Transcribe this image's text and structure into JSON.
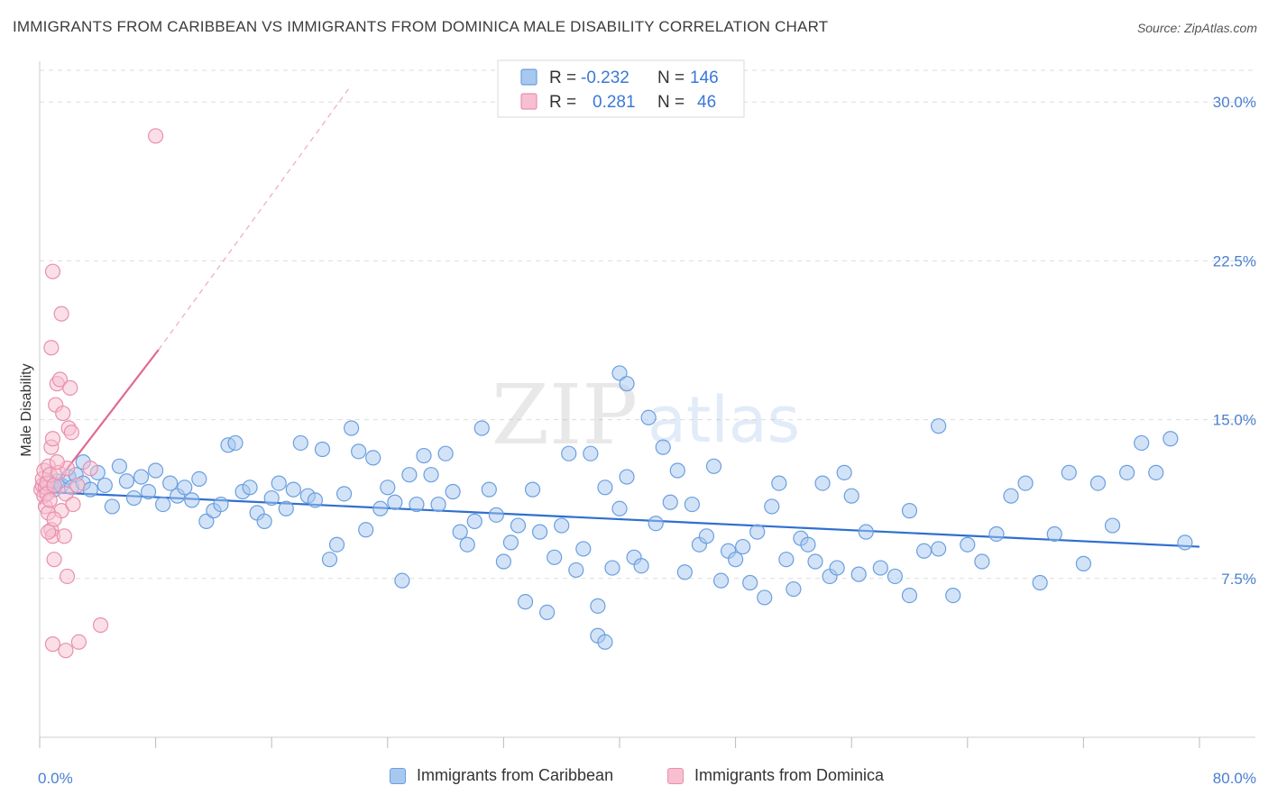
{
  "title": "IMMIGRANTS FROM CARIBBEAN VS IMMIGRANTS FROM DOMINICA MALE DISABILITY CORRELATION CHART",
  "source": "Source: ZipAtlas.com",
  "watermark": {
    "zip": "ZIP",
    "atlas": "atlas"
  },
  "colors": {
    "blue_fill": "#a8c8f0",
    "blue_stroke": "#6a9fe0",
    "blue_line": "#2f6fd0",
    "pink_fill": "#f8bfd0",
    "pink_stroke": "#e890ae",
    "pink_line": "#e06a90",
    "axis_text": "#4a7fd0",
    "grid": "#dddddd"
  },
  "legend": {
    "rows": [
      {
        "r_label": "R =",
        "r_value": "-0.232",
        "n_label": "N =",
        "n_value": "146"
      },
      {
        "r_label": "R =",
        "r_value": "0.281",
        "n_label": "N =",
        "n_value": "46"
      }
    ]
  },
  "bottom_legend": {
    "caribbean": "Immigrants from Caribbean",
    "dominica": "Immigrants from Dominica"
  },
  "chart_data": {
    "type": "scatter",
    "title": "IMMIGRANTS FROM CARIBBEAN VS IMMIGRANTS FROM DOMINICA MALE DISABILITY CORRELATION CHART",
    "xlabel": "",
    "ylabel": "Male Disability",
    "xlim": [
      0,
      80
    ],
    "ylim": [
      0,
      31.5
    ],
    "x_tick_labels": [
      "0.0%",
      "80.0%"
    ],
    "y_ticks": [
      7.5,
      15.0,
      22.5,
      30.0
    ],
    "y_tick_labels": [
      "7.5%",
      "15.0%",
      "22.5%",
      "30.0%"
    ],
    "grid": true,
    "series": [
      {
        "name": "Immigrants from Caribbean",
        "r": -0.232,
        "n": 146,
        "trend": {
          "x": [
            0,
            80
          ],
          "y": [
            11.6,
            9.0
          ]
        },
        "points": [
          [
            0.5,
            11.8
          ],
          [
            0.8,
            12.0
          ],
          [
            1.0,
            11.7
          ],
          [
            1.2,
            12.1
          ],
          [
            1.5,
            11.9
          ],
          [
            2.0,
            12.3
          ],
          [
            2.2,
            11.8
          ],
          [
            2.5,
            12.4
          ],
          [
            3.0,
            12.0
          ],
          [
            3.0,
            13.0
          ],
          [
            3.5,
            11.7
          ],
          [
            4.0,
            12.5
          ],
          [
            4.5,
            11.9
          ],
          [
            5.0,
            10.9
          ],
          [
            5.5,
            12.8
          ],
          [
            6.0,
            12.1
          ],
          [
            6.5,
            11.3
          ],
          [
            7.0,
            12.3
          ],
          [
            7.5,
            11.6
          ],
          [
            8.0,
            12.6
          ],
          [
            8.5,
            11.0
          ],
          [
            9.0,
            12.0
          ],
          [
            9.5,
            11.4
          ],
          [
            10.0,
            11.8
          ],
          [
            10.5,
            11.2
          ],
          [
            11.0,
            12.2
          ],
          [
            11.5,
            10.2
          ],
          [
            12.0,
            10.7
          ],
          [
            12.5,
            11.0
          ],
          [
            13.0,
            13.8
          ],
          [
            13.5,
            13.9
          ],
          [
            14.0,
            11.6
          ],
          [
            14.5,
            11.8
          ],
          [
            15.0,
            10.6
          ],
          [
            15.5,
            10.2
          ],
          [
            16.0,
            11.3
          ],
          [
            16.5,
            12.0
          ],
          [
            17.0,
            10.8
          ],
          [
            17.5,
            11.7
          ],
          [
            18.0,
            13.9
          ],
          [
            18.5,
            11.4
          ],
          [
            19.0,
            11.2
          ],
          [
            19.5,
            13.6
          ],
          [
            20.0,
            8.4
          ],
          [
            20.5,
            9.1
          ],
          [
            21.0,
            11.5
          ],
          [
            21.5,
            14.6
          ],
          [
            22.0,
            13.5
          ],
          [
            22.5,
            9.8
          ],
          [
            23.0,
            13.2
          ],
          [
            23.5,
            10.8
          ],
          [
            24.0,
            11.8
          ],
          [
            24.5,
            11.1
          ],
          [
            25.0,
            7.4
          ],
          [
            25.5,
            12.4
          ],
          [
            26.0,
            11.0
          ],
          [
            26.5,
            13.3
          ],
          [
            27.0,
            12.4
          ],
          [
            27.5,
            11.0
          ],
          [
            28.0,
            13.4
          ],
          [
            28.5,
            11.6
          ],
          [
            29.0,
            9.7
          ],
          [
            29.5,
            9.1
          ],
          [
            30.0,
            10.2
          ],
          [
            30.5,
            14.6
          ],
          [
            31.0,
            11.7
          ],
          [
            31.5,
            10.5
          ],
          [
            32.0,
            8.3
          ],
          [
            32.5,
            9.2
          ],
          [
            33.0,
            10.0
          ],
          [
            33.5,
            6.4
          ],
          [
            34.0,
            11.7
          ],
          [
            34.5,
            9.7
          ],
          [
            35.0,
            5.9
          ],
          [
            35.5,
            8.5
          ],
          [
            36.0,
            10.0
          ],
          [
            36.5,
            13.4
          ],
          [
            37.0,
            7.9
          ],
          [
            37.5,
            8.9
          ],
          [
            38.0,
            13.4
          ],
          [
            38.5,
            6.2
          ],
          [
            39.0,
            11.8
          ],
          [
            39.5,
            8.0
          ],
          [
            40.0,
            10.8
          ],
          [
            40.5,
            12.3
          ],
          [
            41.0,
            8.5
          ],
          [
            41.5,
            8.1
          ],
          [
            42.0,
            15.1
          ],
          [
            42.5,
            10.1
          ],
          [
            43.0,
            13.7
          ],
          [
            43.5,
            11.1
          ],
          [
            44.0,
            12.6
          ],
          [
            44.5,
            7.8
          ],
          [
            45.0,
            11.0
          ],
          [
            45.5,
            9.1
          ],
          [
            46.0,
            9.5
          ],
          [
            46.5,
            12.8
          ],
          [
            47.0,
            7.4
          ],
          [
            47.5,
            8.8
          ],
          [
            48.0,
            8.4
          ],
          [
            48.5,
            9.0
          ],
          [
            49.0,
            7.3
          ],
          [
            49.5,
            9.7
          ],
          [
            50.0,
            6.6
          ],
          [
            50.5,
            10.9
          ],
          [
            51.0,
            12.0
          ],
          [
            51.5,
            8.4
          ],
          [
            52.0,
            7.0
          ],
          [
            52.5,
            9.4
          ],
          [
            53.0,
            9.1
          ],
          [
            53.5,
            8.3
          ],
          [
            54.0,
            12.0
          ],
          [
            54.5,
            7.6
          ],
          [
            55.0,
            8.0
          ],
          [
            55.5,
            12.5
          ],
          [
            56.0,
            11.4
          ],
          [
            56.5,
            7.7
          ],
          [
            57.0,
            9.7
          ],
          [
            58.0,
            8.0
          ],
          [
            59.0,
            7.6
          ],
          [
            60.0,
            10.7
          ],
          [
            61.0,
            8.8
          ],
          [
            62.0,
            14.7
          ],
          [
            63.0,
            6.7
          ],
          [
            64.0,
            9.1
          ],
          [
            65.0,
            8.3
          ],
          [
            66.0,
            9.6
          ],
          [
            67.0,
            11.4
          ],
          [
            68.0,
            12.0
          ],
          [
            69.0,
            7.3
          ],
          [
            70.0,
            9.6
          ],
          [
            71.0,
            12.5
          ],
          [
            72.0,
            8.2
          ],
          [
            73.0,
            12.0
          ],
          [
            74.0,
            10.0
          ],
          [
            75.0,
            12.5
          ],
          [
            76.0,
            13.9
          ],
          [
            77.0,
            12.5
          ],
          [
            78.0,
            14.1
          ],
          [
            79.0,
            9.2
          ],
          [
            40.0,
            17.2
          ],
          [
            40.5,
            16.7
          ],
          [
            38.5,
            4.8
          ],
          [
            39.0,
            4.5
          ],
          [
            60.0,
            6.7
          ],
          [
            62.0,
            8.9
          ]
        ]
      },
      {
        "name": "Immigrants from Dominica",
        "r": 0.281,
        "n": 46,
        "trend_solid": {
          "x": [
            0,
            8.2
          ],
          "y": [
            11.0,
            18.3
          ]
        },
        "trend_dashed": {
          "x": [
            8.2,
            21.5
          ],
          "y": [
            18.3,
            30.8
          ]
        },
        "points": [
          [
            0.1,
            11.7
          ],
          [
            0.2,
            11.9
          ],
          [
            0.2,
            12.2
          ],
          [
            0.3,
            11.4
          ],
          [
            0.3,
            12.6
          ],
          [
            0.4,
            11.8
          ],
          [
            0.4,
            10.9
          ],
          [
            0.5,
            12.0
          ],
          [
            0.5,
            11.5
          ],
          [
            0.6,
            12.8
          ],
          [
            0.6,
            10.6
          ],
          [
            0.7,
            11.2
          ],
          [
            0.7,
            12.4
          ],
          [
            0.8,
            9.8
          ],
          [
            0.8,
            13.7
          ],
          [
            0.9,
            9.5
          ],
          [
            0.9,
            14.1
          ],
          [
            1.0,
            11.9
          ],
          [
            1.0,
            8.4
          ],
          [
            1.1,
            15.7
          ],
          [
            1.2,
            16.7
          ],
          [
            1.3,
            12.5
          ],
          [
            1.4,
            16.9
          ],
          [
            1.5,
            10.7
          ],
          [
            1.6,
            15.3
          ],
          [
            1.7,
            9.5
          ],
          [
            1.8,
            11.5
          ],
          [
            1.9,
            12.7
          ],
          [
            2.0,
            14.6
          ],
          [
            2.1,
            16.5
          ],
          [
            2.2,
            14.4
          ],
          [
            0.9,
            22.0
          ],
          [
            1.5,
            20.0
          ],
          [
            0.8,
            18.4
          ],
          [
            8.0,
            28.4
          ],
          [
            0.9,
            4.4
          ],
          [
            1.8,
            4.1
          ],
          [
            2.7,
            4.5
          ],
          [
            4.2,
            5.3
          ],
          [
            1.9,
            7.6
          ],
          [
            2.3,
            11.0
          ],
          [
            3.5,
            12.7
          ],
          [
            1.2,
            13.0
          ],
          [
            0.6,
            9.7
          ],
          [
            1.0,
            10.3
          ],
          [
            2.6,
            11.9
          ]
        ]
      }
    ]
  }
}
